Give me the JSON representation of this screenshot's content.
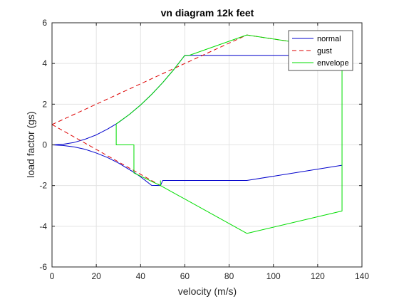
{
  "chart_data": {
    "type": "line",
    "title": "vn diagram 12k feet",
    "xlabel": "velocity (m/s)",
    "ylabel": "load factor (gs)",
    "xlim": [
      0,
      140
    ],
    "ylim": [
      -6,
      6
    ],
    "xticks": [
      0,
      20,
      40,
      60,
      80,
      100,
      120,
      140
    ],
    "yticks": [
      -6,
      -4,
      -2,
      0,
      2,
      4,
      6
    ],
    "grid": true,
    "legend_position": "top-right",
    "series": [
      {
        "name": "normal",
        "color": "#0000cc",
        "dash": "solid",
        "segments": [
          [
            [
              0,
              0
            ],
            [
              5,
              0.03
            ],
            [
              10,
              0.12
            ],
            [
              15,
              0.28
            ],
            [
              20,
              0.49
            ],
            [
              25,
              0.77
            ],
            [
              29,
              1.03
            ],
            [
              30,
              1.1
            ],
            [
              35,
              1.5
            ],
            [
              40,
              1.96
            ],
            [
              45,
              2.48
            ],
            [
              50,
              3.06
            ],
            [
              55,
              3.7
            ],
            [
              58,
              4.12
            ],
            [
              60,
              4.4
            ],
            [
              80,
              4.4
            ],
            [
              100,
              4.4
            ],
            [
              120,
              4.4
            ],
            [
              131,
              4.4
            ]
          ],
          [
            [
              0,
              0
            ],
            [
              5,
              -0.03
            ],
            [
              10,
              -0.1
            ],
            [
              15,
              -0.22
            ],
            [
              20,
              -0.4
            ],
            [
              25,
              -0.62
            ],
            [
              30,
              -0.89
            ],
            [
              37,
              -1.35
            ],
            [
              40,
              -1.57
            ],
            [
              45,
              -1.99
            ],
            [
              49,
              -2.0
            ],
            [
              50,
              -1.75
            ],
            [
              88,
              -1.75
            ],
            [
              131,
              -1.0
            ]
          ]
        ]
      },
      {
        "name": "gust",
        "color": "#dd0000",
        "dash": "dashed",
        "segments": [
          [
            [
              0,
              1
            ],
            [
              88,
              5.4
            ],
            [
              131,
              4.7
            ]
          ],
          [
            [
              0,
              1
            ],
            [
              49,
              -2.0
            ]
          ]
        ]
      },
      {
        "name": "envelope",
        "color": "#00dd00",
        "dash": "solid",
        "segments": [
          [
            [
              29,
              1.0
            ],
            [
              29,
              0.0
            ],
            [
              37,
              0.0
            ],
            [
              37,
              -1.38
            ],
            [
              49,
              -2.0
            ],
            [
              49,
              -1.75
            ]
          ],
          [
            [
              29,
              1.03
            ],
            [
              35,
              1.5
            ],
            [
              40,
              1.96
            ],
            [
              45,
              2.48
            ],
            [
              50,
              3.06
            ],
            [
              55,
              3.7
            ],
            [
              60,
              4.4
            ],
            [
              62,
              4.4
            ],
            [
              88,
              5.4
            ],
            [
              131,
              4.7
            ],
            [
              131,
              -3.25
            ],
            [
              88,
              -4.35
            ],
            [
              49,
              -2.0
            ]
          ]
        ]
      }
    ]
  }
}
